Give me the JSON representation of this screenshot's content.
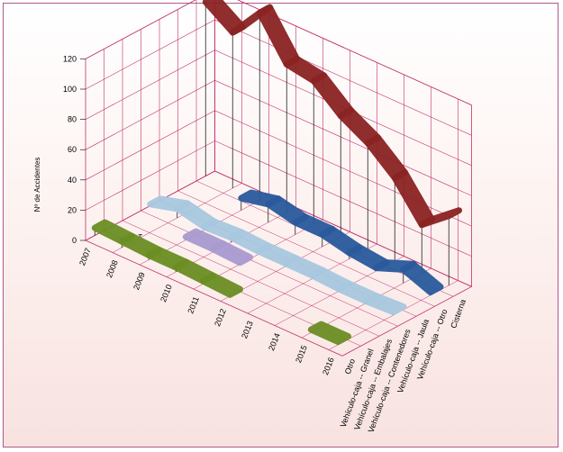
{
  "chart_data": {
    "type": "3d-ribbon-line",
    "title": "",
    "ylabel": "Nº de Accidentes",
    "ylim": [
      0,
      120
    ],
    "yticks": [
      "0",
      "20",
      "40",
      "60",
      "80",
      "100",
      "120"
    ],
    "x": [
      "2007",
      "2008",
      "2009",
      "2010",
      "2011",
      "2012",
      "2013",
      "2014",
      "2015",
      "2016"
    ],
    "categories": [
      "Otro",
      "Vehículo-caja -- Granel",
      "Vehículo-caja -- Embalajes",
      "Vehículo-caja -- Contenedores",
      "Vehículo-caja -- Jaula",
      "Vehículo-caja -- Otro",
      "Cisterna"
    ],
    "series": [
      {
        "category": "Otro",
        "color": "#6b8e23",
        "values": [
          5,
          4,
          3,
          3,
          2,
          1,
          null,
          null,
          2,
          2
        ]
      },
      {
        "category": "Vehículo-caja -- Granel",
        "color": "#c8d8a8",
        "values": [
          null,
          2,
          null,
          null,
          null,
          null,
          null,
          null,
          null,
          null
        ]
      },
      {
        "category": "Vehículo-caja -- Embalajes",
        "color": "#a99ad0",
        "values": [
          null,
          null,
          2,
          2,
          1,
          null,
          null,
          null,
          null,
          null
        ]
      },
      {
        "category": "Vehículo-caja -- Contenedores",
        "color": "#a8c8e0",
        "values": [
          1,
          6,
          2,
          3,
          2,
          2,
          2,
          1,
          1,
          2
        ]
      },
      {
        "category": "Vehículo-caja -- Jaula",
        "color": "#ccd8e8",
        "values": [
          null,
          null,
          null,
          null,
          null,
          null,
          null,
          null,
          null,
          null
        ]
      },
      {
        "category": "Vehículo-caja -- Otro",
        "color": "#2a5a9c",
        "values": [
          null,
          null,
          8,
          12,
          8,
          8,
          4,
          2,
          9,
          2
        ]
      },
      {
        "category": "Cisterna",
        "color": "#8b2323",
        "values": [
          115,
          103,
          124,
          98,
          95,
          80,
          70,
          55,
          32,
          46
        ]
      }
    ],
    "grid": true,
    "legend": "none",
    "colors": {
      "frame_border": "#b05a8a",
      "grid_line": "#c0306b",
      "drop_line": "#000000"
    }
  }
}
